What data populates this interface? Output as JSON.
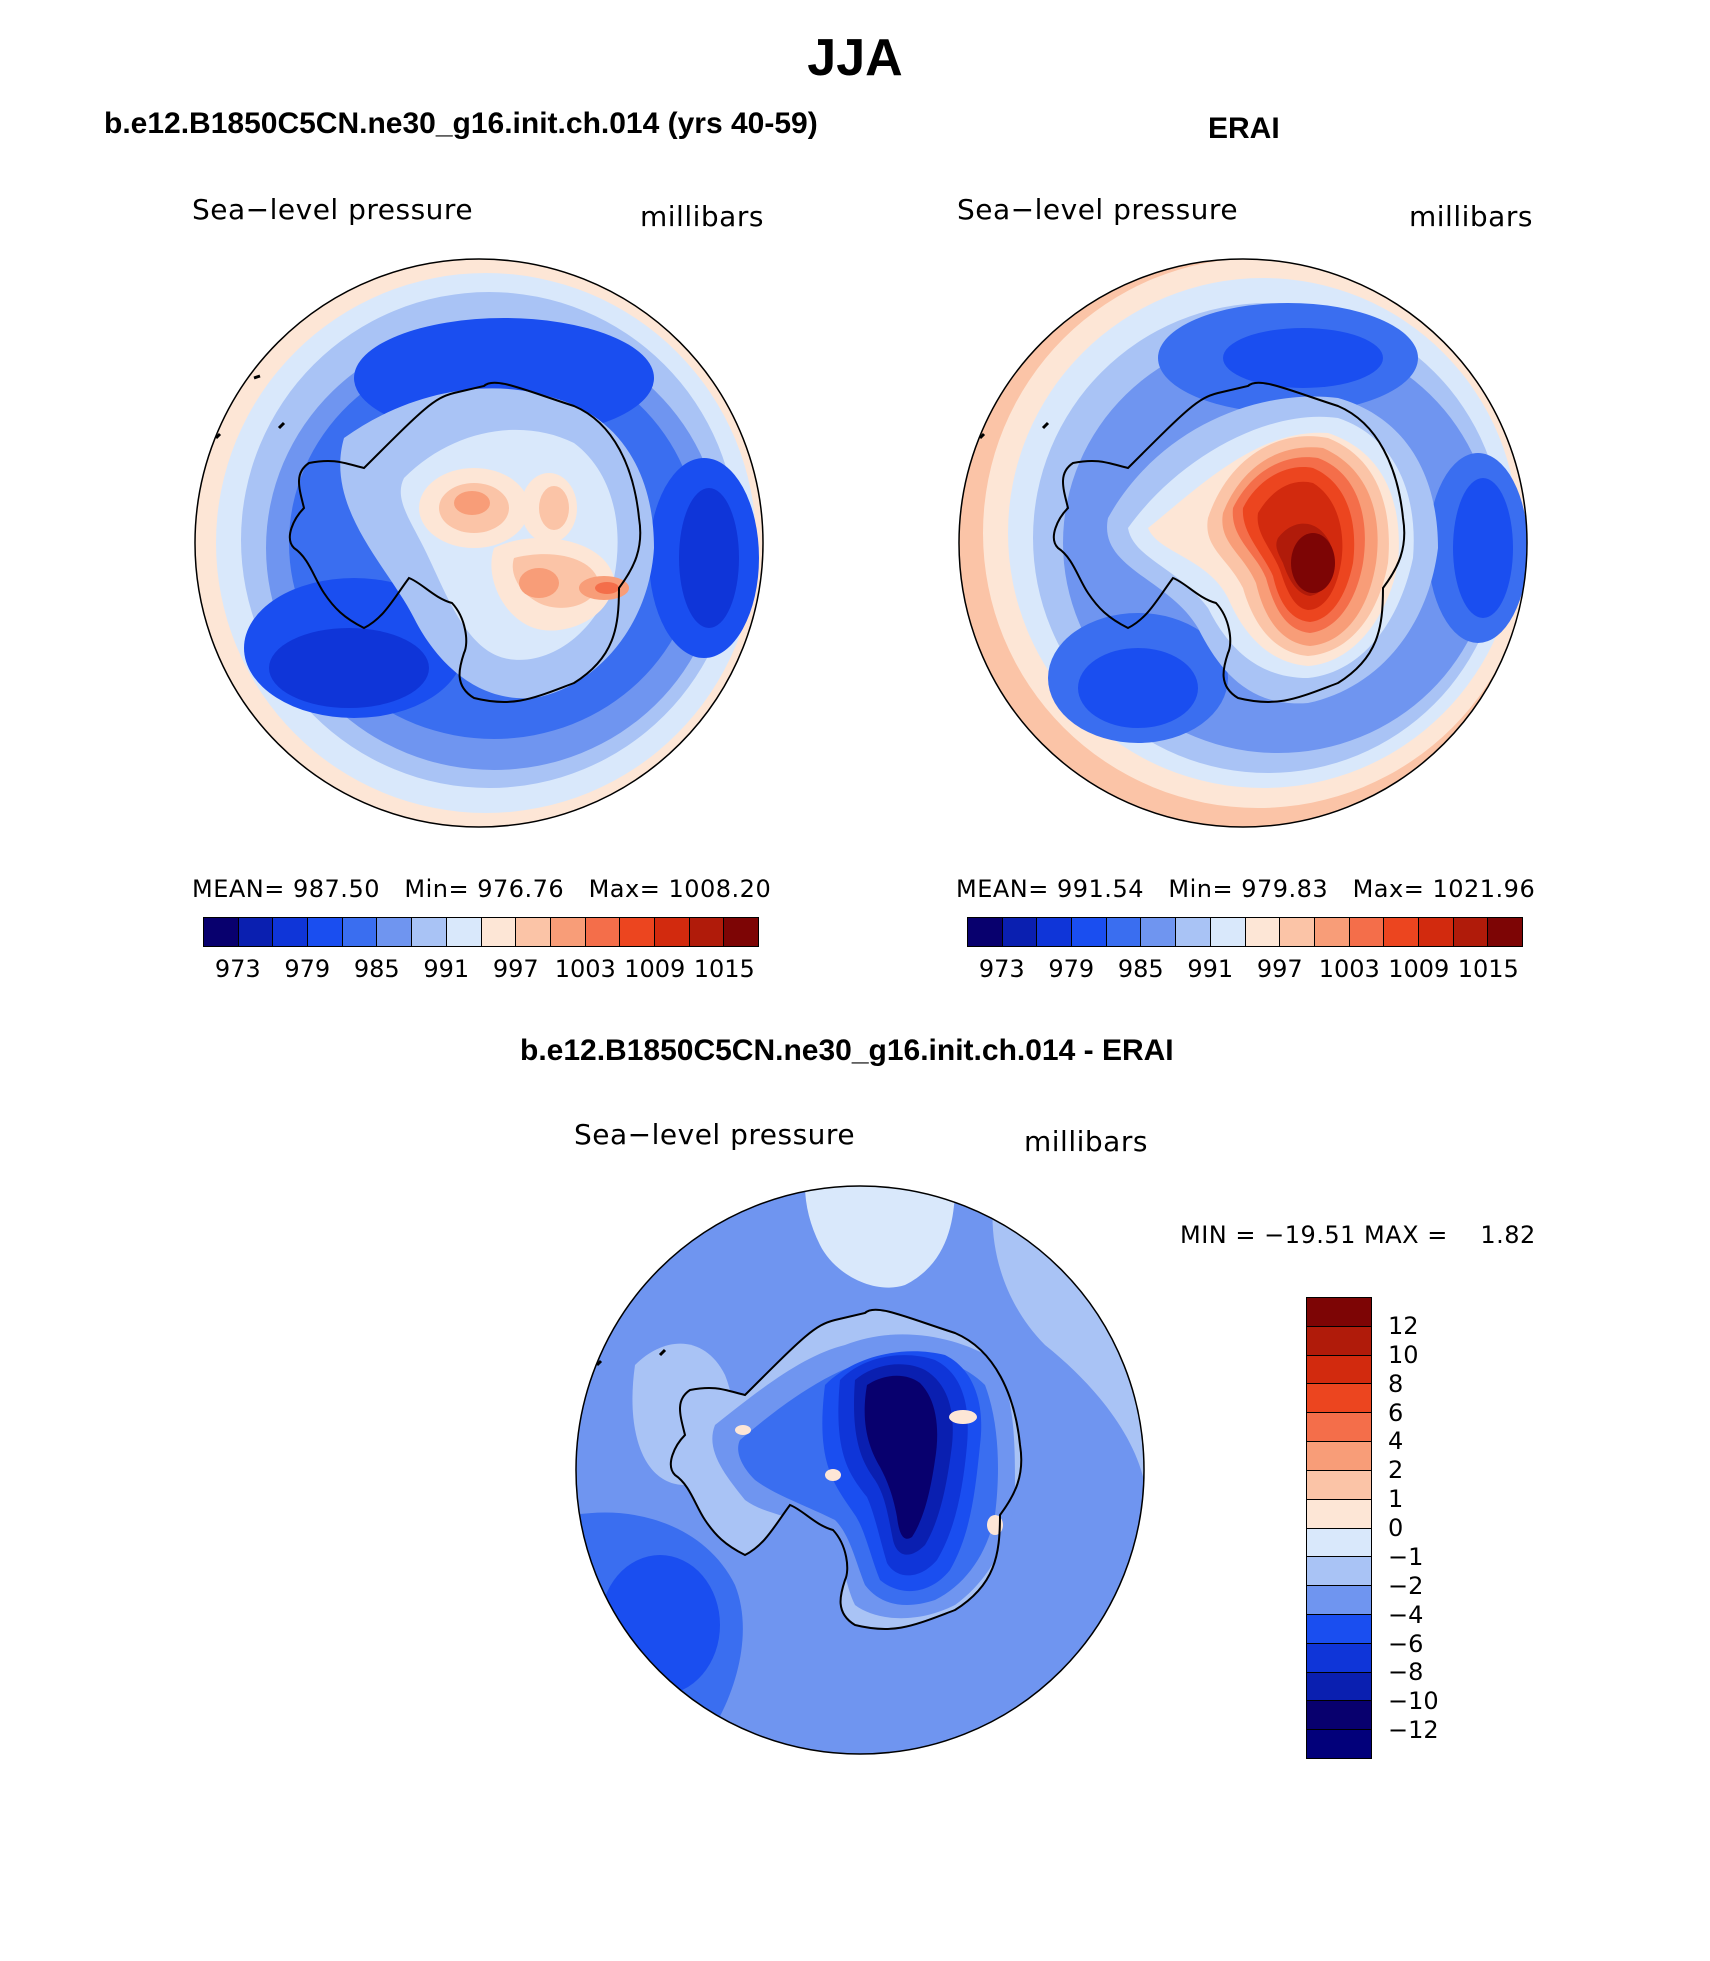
{
  "season": "JJA",
  "panels": [
    {
      "title": "b.e12.B1850C5CN.ne30_g16.init.ch.014 (yrs 40-59)",
      "left_label": "Sea−level pressure",
      "right_label": "millibars",
      "stats": {
        "mean_label": "MEAN=",
        "mean": "987.50",
        "min_label": "Min=",
        "min": "976.76",
        "max_label": "Max=",
        "max": "1008.20"
      },
      "colorbar_labels": [
        "973",
        "979",
        "985",
        "991",
        "997",
        "1003",
        "1009",
        "1015"
      ]
    },
    {
      "title": "ERAI",
      "left_label": "Sea−level pressure",
      "right_label": "millibars",
      "stats": {
        "mean_label": "MEAN=",
        "mean": "991.54",
        "min_label": "Min=",
        "min": "979.83",
        "max_label": "Max=",
        "max": "1021.96"
      },
      "colorbar_labels": [
        "973",
        "979",
        "985",
        "991",
        "997",
        "1003",
        "1009",
        "1015"
      ]
    }
  ],
  "diff_panel": {
    "title": "b.e12.B1850C5CN.ne30_g16.init.ch.014 - ERAI",
    "left_label": "Sea−level pressure",
    "right_label": "millibars",
    "minmax": "MIN = −19.51 MAX =    1.82",
    "colorbar_labels": [
      "12",
      "10",
      "8",
      "6",
      "4",
      "2",
      "1",
      "0",
      "−1",
      "−2",
      "−4",
      "−6",
      "−8",
      "−10",
      "−12"
    ]
  },
  "colors": {
    "abs_scale": [
      "#08006e",
      "#0a1fb0",
      "#0f35d8",
      "#1a4ef0",
      "#3a6ef0",
      "#6f95f0",
      "#a9c3f5",
      "#d9e8fb",
      "#fde6d6",
      "#fbc4a7",
      "#f89d78",
      "#f46e4a",
      "#ec451f",
      "#d22a0e",
      "#b01b0a",
      "#7d0505"
    ],
    "diff_scale": [
      "#7d0505",
      "#b01b0a",
      "#d22a0e",
      "#ec451f",
      "#f46e4a",
      "#f89d78",
      "#fbc4a7",
      "#fde6d6",
      "#d9e8fb",
      "#a9c3f5",
      "#6f95f0",
      "#1a4ef0",
      "#0f35d8",
      "#0a1fb0",
      "#08006e",
      "#02007a"
    ]
  }
}
